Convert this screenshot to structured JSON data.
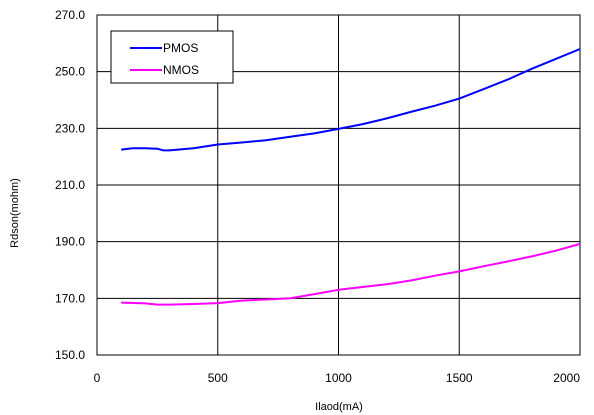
{
  "chart_data": {
    "type": "line",
    "title": "",
    "xlabel": "Ilaod(mA)",
    "ylabel": "Rdson(mohm)",
    "xlim": [
      0,
      2000
    ],
    "ylim": [
      150,
      270
    ],
    "xticks": [
      0,
      500,
      1000,
      1500,
      2000
    ],
    "xtick_labels": [
      "0",
      "500",
      "1000",
      "1500",
      "2000"
    ],
    "yticks": [
      150,
      170,
      190,
      210,
      230,
      250,
      270
    ],
    "ytick_labels": [
      "150.0",
      "170.0",
      "190.0",
      "210.0",
      "230.0",
      "250.0",
      "270.0"
    ],
    "grid": true,
    "legend_position": "top-left",
    "series": [
      {
        "name": "PMOS",
        "color": "#0000ff",
        "x": [
          100,
          150,
          200,
          250,
          275,
          300,
          400,
          500,
          600,
          700,
          800,
          900,
          1000,
          1100,
          1200,
          1300,
          1400,
          1500,
          1600,
          1700,
          1800,
          1900,
          2000
        ],
        "y": [
          222.5,
          223,
          223,
          222.8,
          222.2,
          222.2,
          223,
          224.3,
          225,
          225.8,
          227,
          228.2,
          229.8,
          231.5,
          233.5,
          235.8,
          238,
          240.5,
          243.8,
          247.2,
          251,
          254.5,
          258
        ]
      },
      {
        "name": "NMOS",
        "color": "#ff00ff",
        "x": [
          100,
          200,
          250,
          300,
          400,
          500,
          600,
          700,
          800,
          900,
          1000,
          1100,
          1200,
          1300,
          1400,
          1500,
          1600,
          1700,
          1800,
          1900,
          2000
        ],
        "y": [
          168.5,
          168.2,
          167.8,
          167.8,
          168,
          168.3,
          169.2,
          169.6,
          170,
          171.5,
          173,
          174,
          175,
          176.3,
          178,
          179.5,
          181.3,
          183,
          184.8,
          186.8,
          189.2
        ]
      }
    ]
  }
}
